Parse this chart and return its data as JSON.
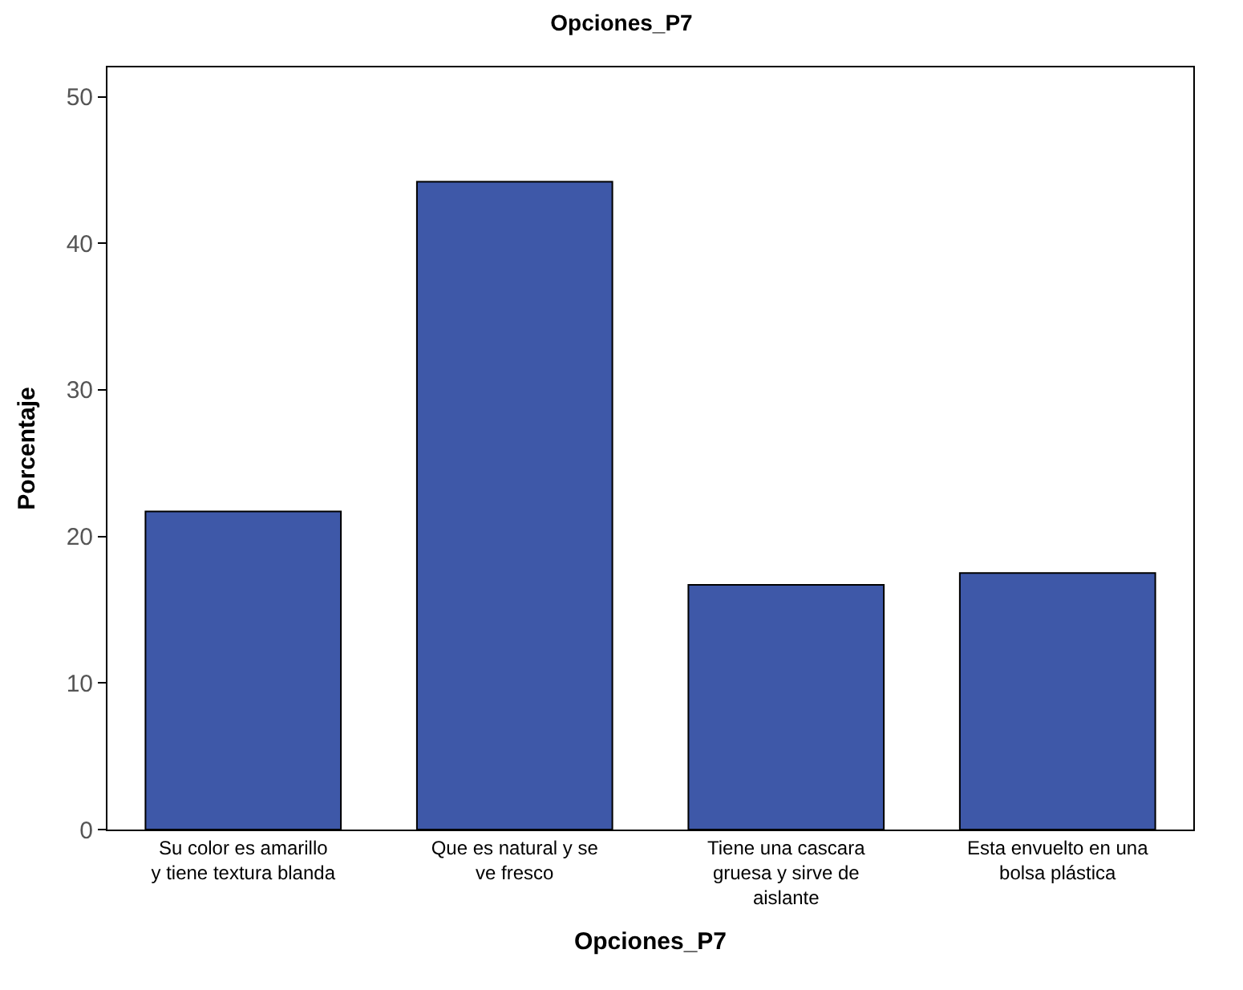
{
  "chart_data": {
    "type": "bar",
    "title": "Opciones_P7",
    "xlabel": "Opciones_P7",
    "ylabel": "Porcentaje",
    "categories": [
      "Su color es amarillo\ny tiene textura blanda",
      "Que es natural y se\nve fresco",
      "Tiene una cascara\ngruesa y sirve de\naislante",
      "Esta envuelto en una\nbolsa plástica"
    ],
    "values": [
      21.7,
      44.2,
      16.7,
      17.5
    ],
    "color": "#3e58a8",
    "ylim": [
      0,
      52
    ],
    "yticks": [
      0,
      10,
      20,
      30,
      40,
      50
    ]
  }
}
